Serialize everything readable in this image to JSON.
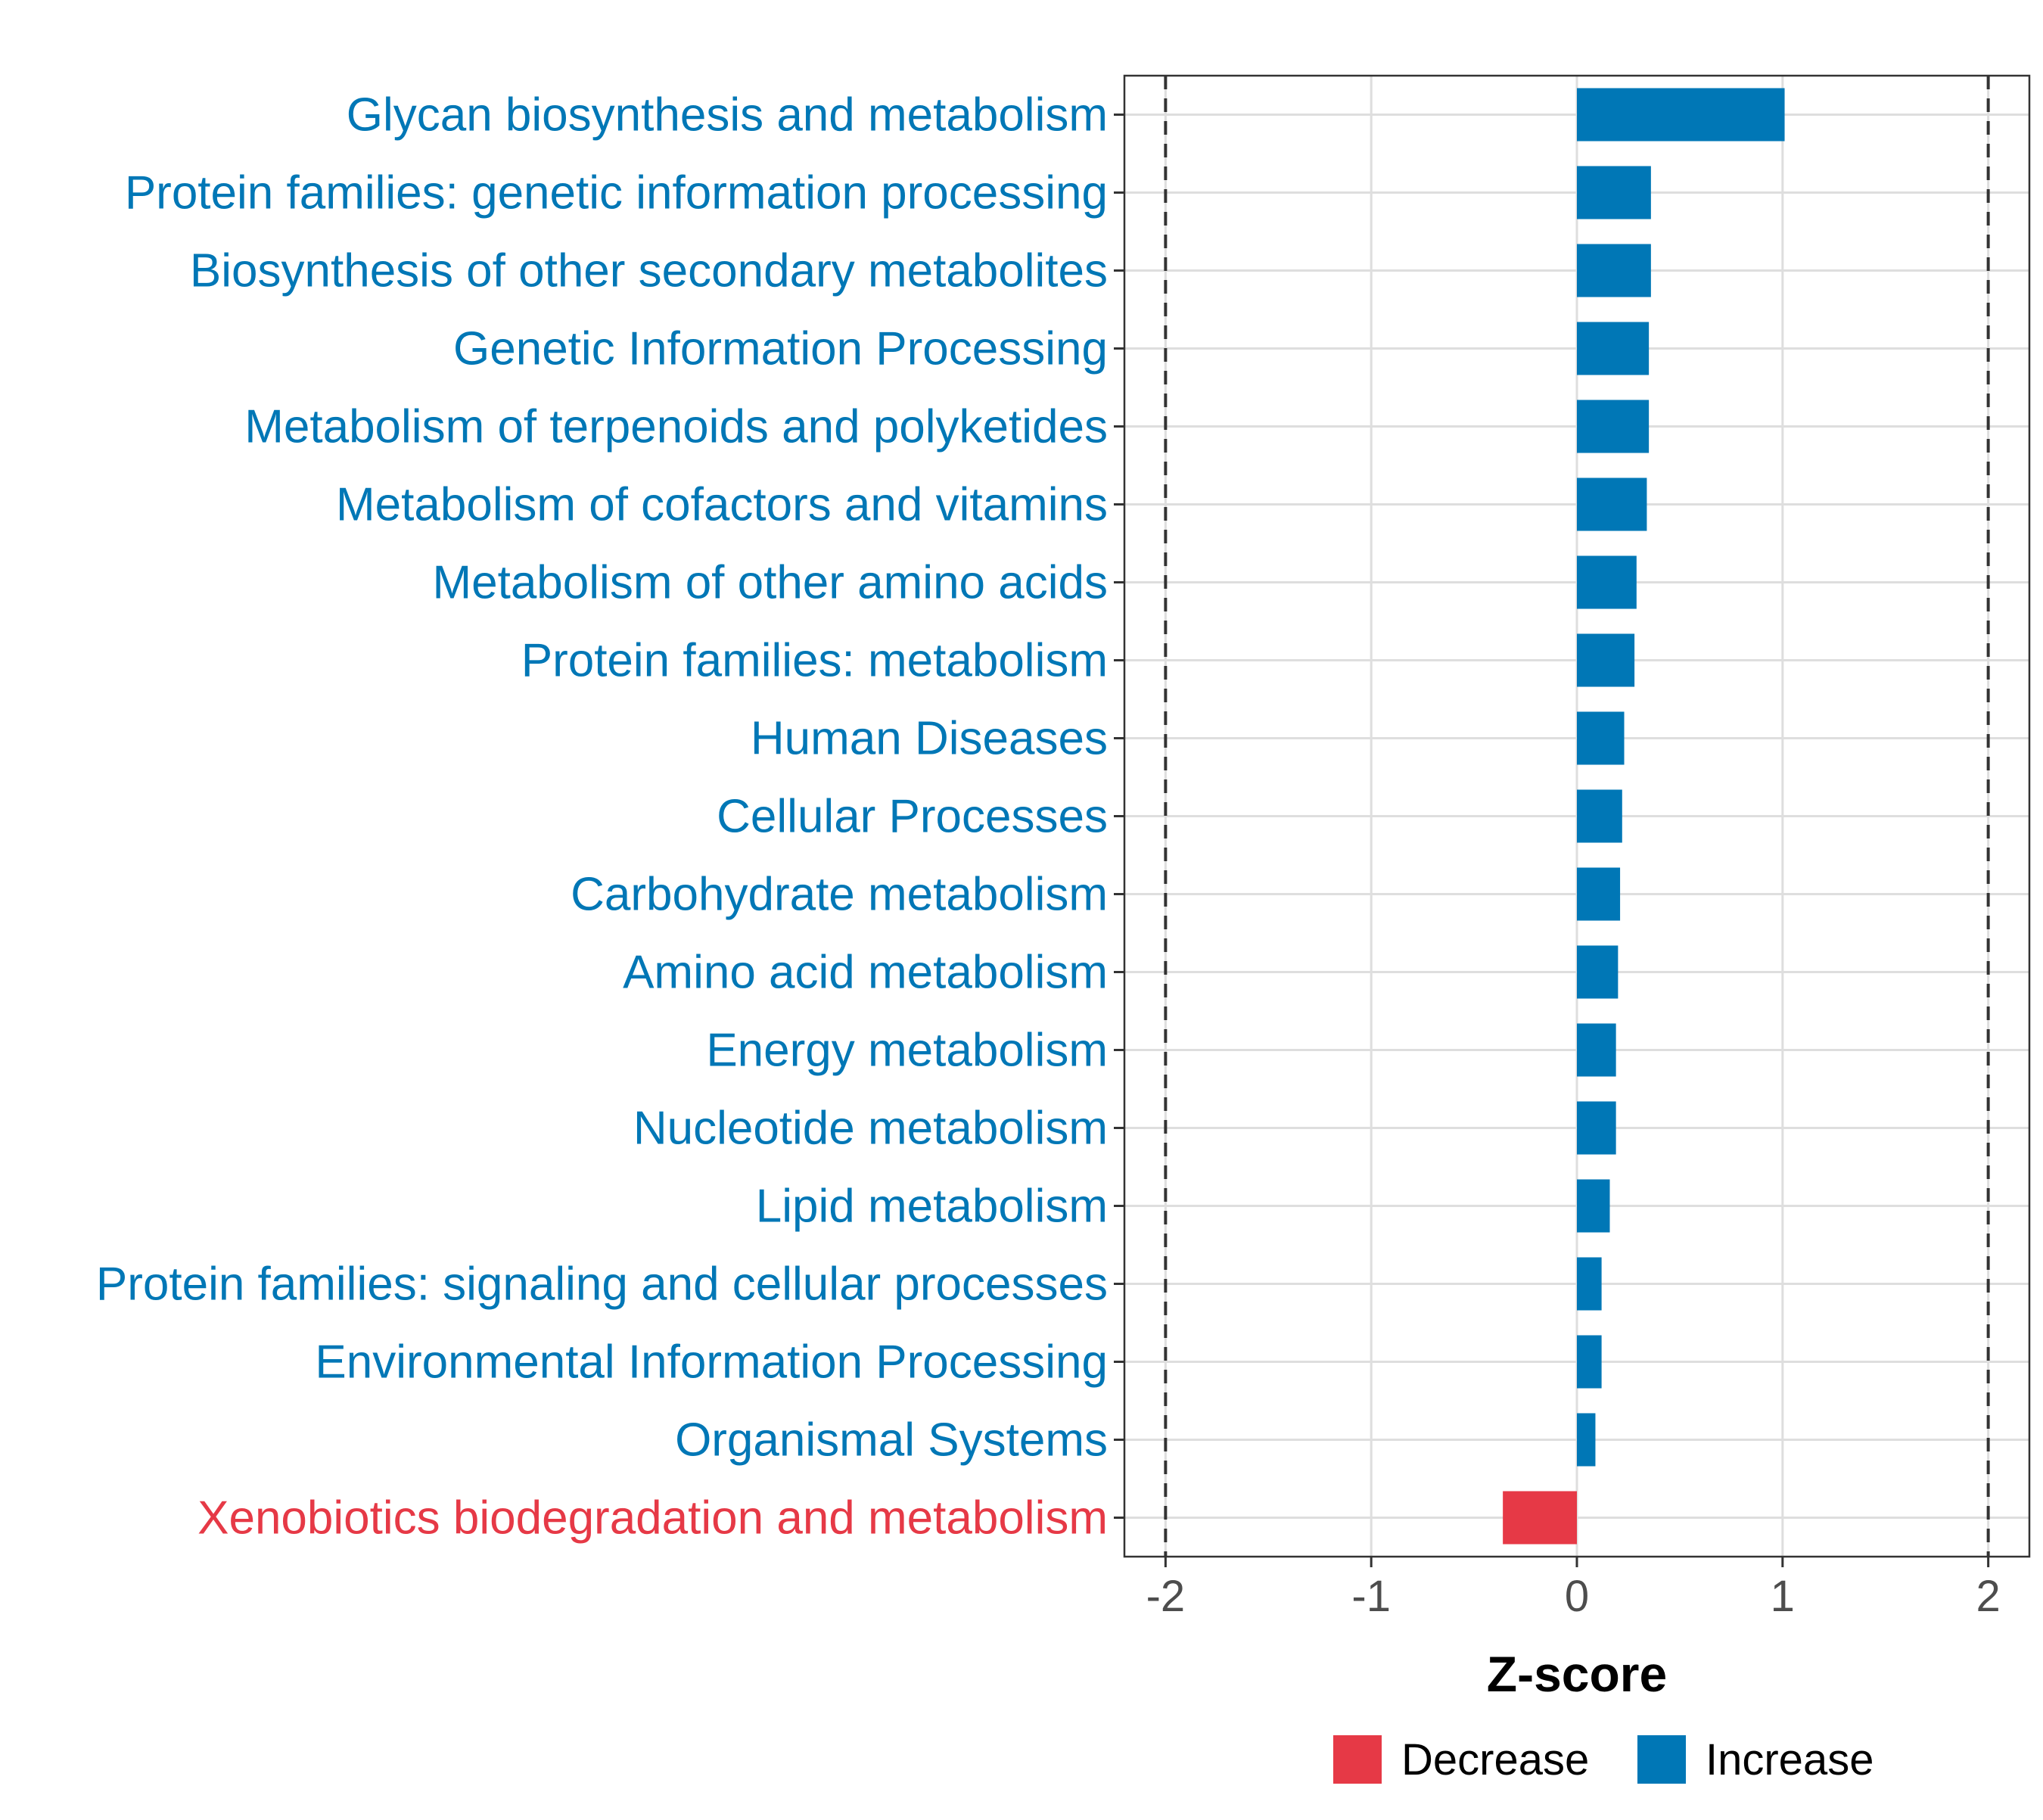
{
  "chart_data": {
    "type": "bar",
    "orientation": "horizontal",
    "xlabel": "Z-score",
    "xlim": [
      -2.2,
      2.2
    ],
    "xticks": [
      -2,
      -1,
      0,
      1,
      2
    ],
    "xtick_labels": [
      "-2",
      "-1",
      "0",
      "1",
      "2"
    ],
    "reference_lines": [
      -2,
      2
    ],
    "grid": true,
    "legend_position": "bottom",
    "legend": [
      {
        "name": "Decrease",
        "color": "#E63946"
      },
      {
        "name": "Increase",
        "color": "#0077B6"
      }
    ],
    "categories": [
      "Glycan biosynthesis and metabolism",
      "Protein families: genetic information processing",
      "Biosynthesis of other secondary metabolites",
      "Genetic Information Processing",
      "Metabolism of terpenoids and polyketides",
      "Metabolism of cofactors and vitamins",
      "Metabolism of other amino acids",
      "Protein families: metabolism",
      "Human Diseases",
      "Cellular Processes",
      "Carbohydrate metabolism",
      "Amino acid metabolism",
      "Energy metabolism",
      "Nucleotide metabolism",
      "Lipid metabolism",
      "Protein families: signaling and cellular processes",
      "Environmental Information Processing",
      "Organismal Systems",
      "Xenobiotics biodegradation and metabolism"
    ],
    "values": [
      1.01,
      0.36,
      0.36,
      0.35,
      0.35,
      0.34,
      0.29,
      0.28,
      0.23,
      0.22,
      0.21,
      0.2,
      0.19,
      0.19,
      0.16,
      0.12,
      0.12,
      0.09,
      -0.36
    ],
    "groups": [
      "Increase",
      "Increase",
      "Increase",
      "Increase",
      "Increase",
      "Increase",
      "Increase",
      "Increase",
      "Increase",
      "Increase",
      "Increase",
      "Increase",
      "Increase",
      "Increase",
      "Increase",
      "Increase",
      "Increase",
      "Increase",
      "Decrease"
    ]
  }
}
